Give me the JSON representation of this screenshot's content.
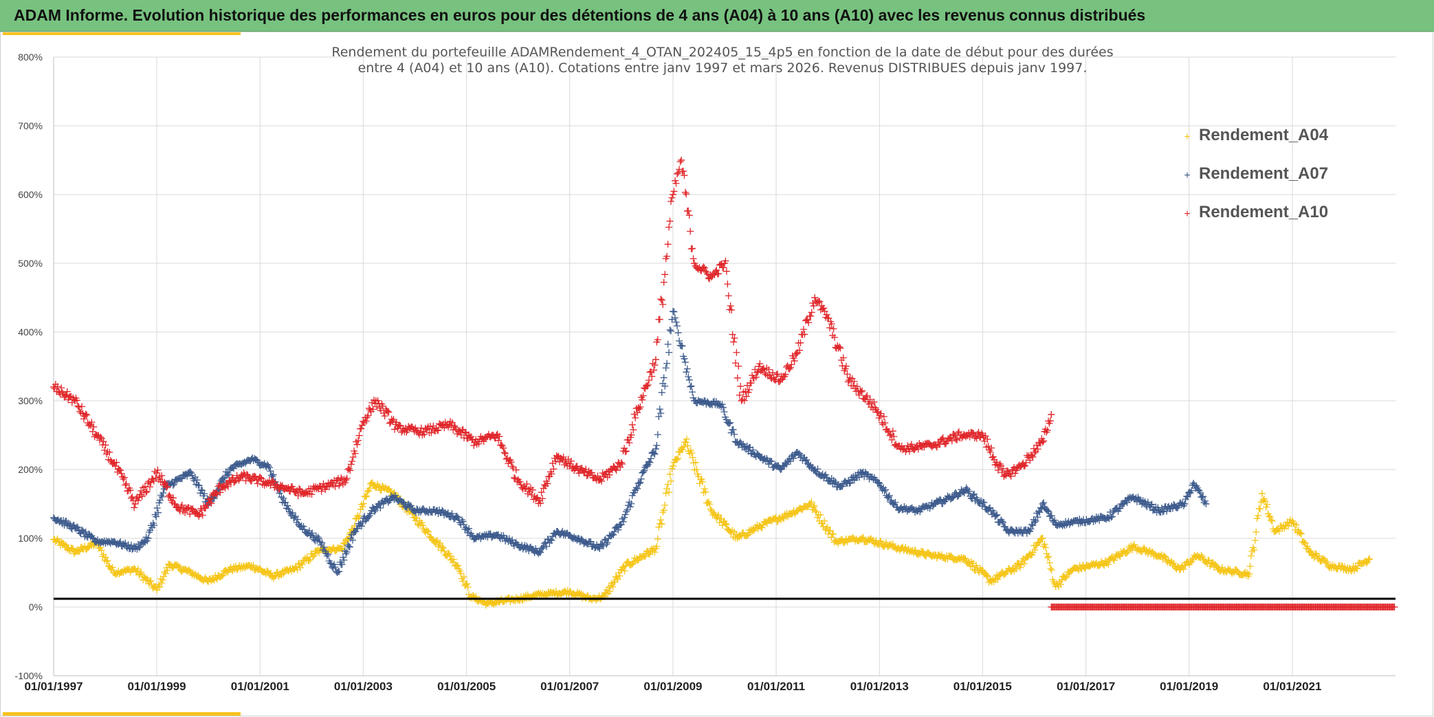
{
  "header": {
    "title": "ADAM Informe. Evolution historique des performances en euros pour des détentions de 4 ans (A04) à 10 ans (A10) avec les revenus connus distribués"
  },
  "colors": {
    "header_bg": "#77c27f",
    "accent": "#f7c21a",
    "A04": "#f5c518",
    "A07": "#3c5a8c",
    "A10": "#e0262a",
    "reference_line": "#000000"
  },
  "chart_data": {
    "type": "scatter",
    "marker": "plus",
    "title_lines": [
      "Rendement du portefeuille ADAMRendement_4_OTAN_202405_15_4p5  en fonction de la date de début pour des durées",
      "entre 4 (A04) et 10 ans (A10). Cotations entre janv 1997 et mars 2026. Revenus DISTRIBUES depuis janv 1997."
    ],
    "ylim": [
      -100,
      800
    ],
    "ytick_labels": [
      "-100%",
      "0%",
      "100%",
      "200%",
      "300%",
      "400%",
      "500%",
      "600%",
      "700%",
      "800%"
    ],
    "xlim": [
      "1997-01-01",
      "2022-12-31"
    ],
    "xtick_labels": [
      "01/01/1997",
      "01/01/1999",
      "01/01/2001",
      "01/01/2003",
      "01/01/2005",
      "01/01/2007",
      "01/01/2009",
      "01/01/2011",
      "01/01/2013",
      "01/01/2015",
      "01/01/2017",
      "01/01/2019",
      "01/01/2021"
    ],
    "grid": true,
    "legend_position": "top-right",
    "reference_line_y": 12,
    "series": [
      {
        "name": "Rendement_A04",
        "color": "#f5c518",
        "points": [
          [
            "1997-01-01",
            98
          ],
          [
            "1997-06-01",
            80
          ],
          [
            "1997-11-01",
            93
          ],
          [
            "1998-03-01",
            50
          ],
          [
            "1998-08-01",
            55
          ],
          [
            "1999-01-01",
            25
          ],
          [
            "1999-04-01",
            62
          ],
          [
            "1999-09-01",
            50
          ],
          [
            "2000-01-01",
            37
          ],
          [
            "2000-06-01",
            55
          ],
          [
            "2000-11-01",
            60
          ],
          [
            "2001-04-01",
            45
          ],
          [
            "2001-09-01",
            55
          ],
          [
            "2002-03-01",
            83
          ],
          [
            "2002-08-01",
            85
          ],
          [
            "2002-11-01",
            118
          ],
          [
            "2003-03-01",
            180
          ],
          [
            "2003-08-01",
            165
          ],
          [
            "2004-01-01",
            130
          ],
          [
            "2004-06-01",
            95
          ],
          [
            "2004-11-01",
            60
          ],
          [
            "2005-02-01",
            15
          ],
          [
            "2005-06-01",
            5
          ],
          [
            "2006-01-01",
            12
          ],
          [
            "2006-06-01",
            18
          ],
          [
            "2007-01-01",
            22
          ],
          [
            "2007-06-01",
            12
          ],
          [
            "2007-09-01",
            15
          ],
          [
            "2008-02-01",
            60
          ],
          [
            "2008-09-01",
            85
          ],
          [
            "2009-01-01",
            205
          ],
          [
            "2009-04-01",
            240
          ],
          [
            "2009-10-01",
            140
          ],
          [
            "2010-04-01",
            100
          ],
          [
            "2010-10-01",
            120
          ],
          [
            "2011-04-01",
            135
          ],
          [
            "2011-09-01",
            150
          ],
          [
            "2012-03-01",
            95
          ],
          [
            "2012-09-01",
            100
          ],
          [
            "2013-06-01",
            85
          ],
          [
            "2014-01-01",
            75
          ],
          [
            "2014-09-01",
            70
          ],
          [
            "2015-03-01",
            38
          ],
          [
            "2015-10-01",
            62
          ],
          [
            "2016-03-01",
            100
          ],
          [
            "2016-06-01",
            30
          ],
          [
            "2016-10-01",
            55
          ],
          [
            "2017-06-01",
            65
          ],
          [
            "2017-12-01",
            88
          ],
          [
            "2018-06-01",
            75
          ],
          [
            "2018-11-01",
            55
          ],
          [
            "2019-03-01",
            75
          ],
          [
            "2019-08-01",
            55
          ],
          [
            "2020-03-01",
            48
          ],
          [
            "2020-06-01",
            165
          ],
          [
            "2020-09-01",
            110
          ],
          [
            "2021-01-01",
            125
          ],
          [
            "2021-05-01",
            80
          ],
          [
            "2021-10-01",
            60
          ],
          [
            "2022-03-01",
            55
          ],
          [
            "2022-07-01",
            70
          ]
        ]
      },
      {
        "name": "Rendement_A07",
        "color": "#3c5a8c",
        "points": [
          [
            "1997-01-01",
            130
          ],
          [
            "1997-06-01",
            115
          ],
          [
            "1997-11-01",
            95
          ],
          [
            "1998-03-01",
            95
          ],
          [
            "1998-08-01",
            85
          ],
          [
            "1998-11-01",
            100
          ],
          [
            "1999-03-01",
            175
          ],
          [
            "1999-09-01",
            195
          ],
          [
            "2000-01-01",
            150
          ],
          [
            "2000-06-01",
            200
          ],
          [
            "2000-11-01",
            215
          ],
          [
            "2001-03-01",
            205
          ],
          [
            "2001-06-01",
            160
          ],
          [
            "2001-10-01",
            120
          ],
          [
            "2002-03-01",
            95
          ],
          [
            "2002-07-01",
            50
          ],
          [
            "2002-11-01",
            110
          ],
          [
            "2003-03-01",
            140
          ],
          [
            "2003-08-01",
            160
          ],
          [
            "2004-01-01",
            140
          ],
          [
            "2004-06-01",
            140
          ],
          [
            "2004-11-01",
            130
          ],
          [
            "2005-03-01",
            100
          ],
          [
            "2005-08-01",
            105
          ],
          [
            "2006-01-01",
            90
          ],
          [
            "2006-06-01",
            80
          ],
          [
            "2006-10-01",
            110
          ],
          [
            "2007-03-01",
            100
          ],
          [
            "2007-08-01",
            85
          ],
          [
            "2008-01-01",
            120
          ],
          [
            "2008-05-01",
            180
          ],
          [
            "2008-09-01",
            230
          ],
          [
            "2009-01-01",
            430
          ],
          [
            "2009-03-01",
            380
          ],
          [
            "2009-06-01",
            300
          ],
          [
            "2009-12-01",
            295
          ],
          [
            "2010-04-01",
            240
          ],
          [
            "2010-09-01",
            220
          ],
          [
            "2011-02-01",
            200
          ],
          [
            "2011-06-01",
            225
          ],
          [
            "2011-10-01",
            200
          ],
          [
            "2012-04-01",
            175
          ],
          [
            "2012-09-01",
            195
          ],
          [
            "2013-01-01",
            180
          ],
          [
            "2013-05-01",
            145
          ],
          [
            "2013-10-01",
            140
          ],
          [
            "2014-04-01",
            155
          ],
          [
            "2014-09-01",
            170
          ],
          [
            "2015-03-01",
            140
          ],
          [
            "2015-07-01",
            110
          ],
          [
            "2015-12-01",
            110
          ],
          [
            "2016-03-01",
            150
          ],
          [
            "2016-06-01",
            120
          ],
          [
            "2016-12-01",
            125
          ],
          [
            "2017-06-01",
            130
          ],
          [
            "2017-12-01",
            160
          ],
          [
            "2018-06-01",
            140
          ],
          [
            "2018-12-01",
            150
          ],
          [
            "2019-02-01",
            180
          ],
          [
            "2019-05-01",
            150
          ]
        ]
      },
      {
        "name": "Rendement_A10",
        "color": "#e0262a",
        "points": [
          [
            "1997-01-01",
            320
          ],
          [
            "1997-06-01",
            300
          ],
          [
            "1997-11-01",
            250
          ],
          [
            "1998-03-01",
            210
          ],
          [
            "1998-08-01",
            150
          ],
          [
            "1999-01-01",
            195
          ],
          [
            "1999-06-01",
            145
          ],
          [
            "1999-11-01",
            135
          ],
          [
            "2000-04-01",
            175
          ],
          [
            "2000-09-01",
            190
          ],
          [
            "2001-03-01",
            180
          ],
          [
            "2001-06-01",
            175
          ],
          [
            "2001-11-01",
            165
          ],
          [
            "2002-04-01",
            175
          ],
          [
            "2002-09-01",
            185
          ],
          [
            "2003-01-01",
            270
          ],
          [
            "2003-04-01",
            300
          ],
          [
            "2003-09-01",
            260
          ],
          [
            "2004-03-01",
            255
          ],
          [
            "2004-09-01",
            265
          ],
          [
            "2005-03-01",
            240
          ],
          [
            "2005-08-01",
            250
          ],
          [
            "2006-01-01",
            185
          ],
          [
            "2006-06-01",
            155
          ],
          [
            "2006-10-01",
            220
          ],
          [
            "2007-03-01",
            200
          ],
          [
            "2007-08-01",
            185
          ],
          [
            "2008-01-01",
            210
          ],
          [
            "2008-05-01",
            290
          ],
          [
            "2008-09-01",
            360
          ],
          [
            "2009-01-01",
            600
          ],
          [
            "2009-03-01",
            650
          ],
          [
            "2009-06-01",
            500
          ],
          [
            "2009-10-01",
            480
          ],
          [
            "2010-01-01",
            500
          ],
          [
            "2010-05-01",
            300
          ],
          [
            "2010-09-01",
            350
          ],
          [
            "2011-02-01",
            330
          ],
          [
            "2011-06-01",
            370
          ],
          [
            "2011-10-01",
            450
          ],
          [
            "2012-01-01",
            420
          ],
          [
            "2012-06-01",
            330
          ],
          [
            "2012-12-01",
            290
          ],
          [
            "2013-06-01",
            230
          ],
          [
            "2014-01-01",
            235
          ],
          [
            "2014-08-01",
            250
          ],
          [
            "2015-01-01",
            250
          ],
          [
            "2015-06-01",
            190
          ],
          [
            "2015-10-01",
            205
          ],
          [
            "2016-03-01",
            240
          ],
          [
            "2016-05-01",
            280
          ]
        ]
      }
    ],
    "zero_run": {
      "color": "#e0262a",
      "value": 0,
      "from": "2016-05-01",
      "to": "2022-12-31"
    }
  }
}
